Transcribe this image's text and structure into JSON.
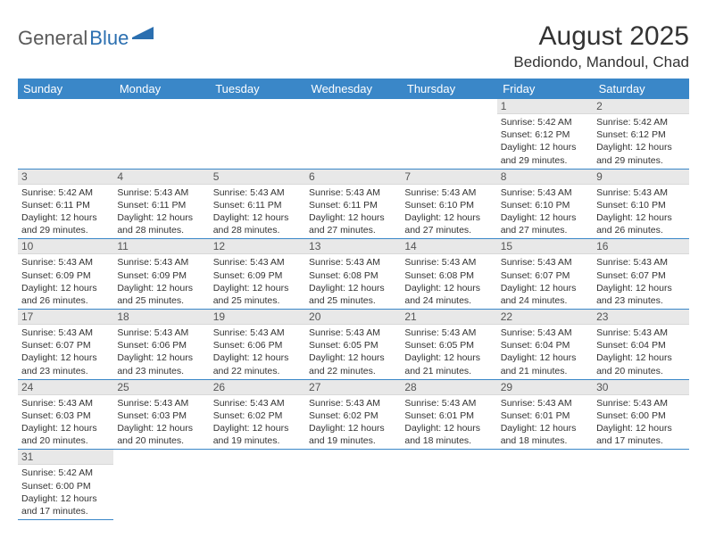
{
  "logo": {
    "text1": "General",
    "text2": "Blue"
  },
  "title": "August 2025",
  "location": "Bediondo, Mandoul, Chad",
  "colors": {
    "header_bg": "#3a87c8",
    "header_fg": "#ffffff",
    "daynum_bg": "#e8e8e8",
    "border": "#3a87c8",
    "logo_gray": "#5a5a5a",
    "logo_blue": "#2b6fb0"
  },
  "weekdays": [
    "Sunday",
    "Monday",
    "Tuesday",
    "Wednesday",
    "Thursday",
    "Friday",
    "Saturday"
  ],
  "weeks": [
    [
      null,
      null,
      null,
      null,
      null,
      {
        "n": "1",
        "sr": "5:42 AM",
        "ss": "6:12 PM",
        "dl": "12 hours and 29 minutes."
      },
      {
        "n": "2",
        "sr": "5:42 AM",
        "ss": "6:12 PM",
        "dl": "12 hours and 29 minutes."
      }
    ],
    [
      {
        "n": "3",
        "sr": "5:42 AM",
        "ss": "6:11 PM",
        "dl": "12 hours and 29 minutes."
      },
      {
        "n": "4",
        "sr": "5:43 AM",
        "ss": "6:11 PM",
        "dl": "12 hours and 28 minutes."
      },
      {
        "n": "5",
        "sr": "5:43 AM",
        "ss": "6:11 PM",
        "dl": "12 hours and 28 minutes."
      },
      {
        "n": "6",
        "sr": "5:43 AM",
        "ss": "6:11 PM",
        "dl": "12 hours and 27 minutes."
      },
      {
        "n": "7",
        "sr": "5:43 AM",
        "ss": "6:10 PM",
        "dl": "12 hours and 27 minutes."
      },
      {
        "n": "8",
        "sr": "5:43 AM",
        "ss": "6:10 PM",
        "dl": "12 hours and 27 minutes."
      },
      {
        "n": "9",
        "sr": "5:43 AM",
        "ss": "6:10 PM",
        "dl": "12 hours and 26 minutes."
      }
    ],
    [
      {
        "n": "10",
        "sr": "5:43 AM",
        "ss": "6:09 PM",
        "dl": "12 hours and 26 minutes."
      },
      {
        "n": "11",
        "sr": "5:43 AM",
        "ss": "6:09 PM",
        "dl": "12 hours and 25 minutes."
      },
      {
        "n": "12",
        "sr": "5:43 AM",
        "ss": "6:09 PM",
        "dl": "12 hours and 25 minutes."
      },
      {
        "n": "13",
        "sr": "5:43 AM",
        "ss": "6:08 PM",
        "dl": "12 hours and 25 minutes."
      },
      {
        "n": "14",
        "sr": "5:43 AM",
        "ss": "6:08 PM",
        "dl": "12 hours and 24 minutes."
      },
      {
        "n": "15",
        "sr": "5:43 AM",
        "ss": "6:07 PM",
        "dl": "12 hours and 24 minutes."
      },
      {
        "n": "16",
        "sr": "5:43 AM",
        "ss": "6:07 PM",
        "dl": "12 hours and 23 minutes."
      }
    ],
    [
      {
        "n": "17",
        "sr": "5:43 AM",
        "ss": "6:07 PM",
        "dl": "12 hours and 23 minutes."
      },
      {
        "n": "18",
        "sr": "5:43 AM",
        "ss": "6:06 PM",
        "dl": "12 hours and 23 minutes."
      },
      {
        "n": "19",
        "sr": "5:43 AM",
        "ss": "6:06 PM",
        "dl": "12 hours and 22 minutes."
      },
      {
        "n": "20",
        "sr": "5:43 AM",
        "ss": "6:05 PM",
        "dl": "12 hours and 22 minutes."
      },
      {
        "n": "21",
        "sr": "5:43 AM",
        "ss": "6:05 PM",
        "dl": "12 hours and 21 minutes."
      },
      {
        "n": "22",
        "sr": "5:43 AM",
        "ss": "6:04 PM",
        "dl": "12 hours and 21 minutes."
      },
      {
        "n": "23",
        "sr": "5:43 AM",
        "ss": "6:04 PM",
        "dl": "12 hours and 20 minutes."
      }
    ],
    [
      {
        "n": "24",
        "sr": "5:43 AM",
        "ss": "6:03 PM",
        "dl": "12 hours and 20 minutes."
      },
      {
        "n": "25",
        "sr": "5:43 AM",
        "ss": "6:03 PM",
        "dl": "12 hours and 20 minutes."
      },
      {
        "n": "26",
        "sr": "5:43 AM",
        "ss": "6:02 PM",
        "dl": "12 hours and 19 minutes."
      },
      {
        "n": "27",
        "sr": "5:43 AM",
        "ss": "6:02 PM",
        "dl": "12 hours and 19 minutes."
      },
      {
        "n": "28",
        "sr": "5:43 AM",
        "ss": "6:01 PM",
        "dl": "12 hours and 18 minutes."
      },
      {
        "n": "29",
        "sr": "5:43 AM",
        "ss": "6:01 PM",
        "dl": "12 hours and 18 minutes."
      },
      {
        "n": "30",
        "sr": "5:43 AM",
        "ss": "6:00 PM",
        "dl": "12 hours and 17 minutes."
      }
    ],
    [
      {
        "n": "31",
        "sr": "5:42 AM",
        "ss": "6:00 PM",
        "dl": "12 hours and 17 minutes."
      },
      null,
      null,
      null,
      null,
      null,
      null
    ]
  ],
  "labels": {
    "sunrise": "Sunrise:",
    "sunset": "Sunset:",
    "daylight": "Daylight:"
  }
}
